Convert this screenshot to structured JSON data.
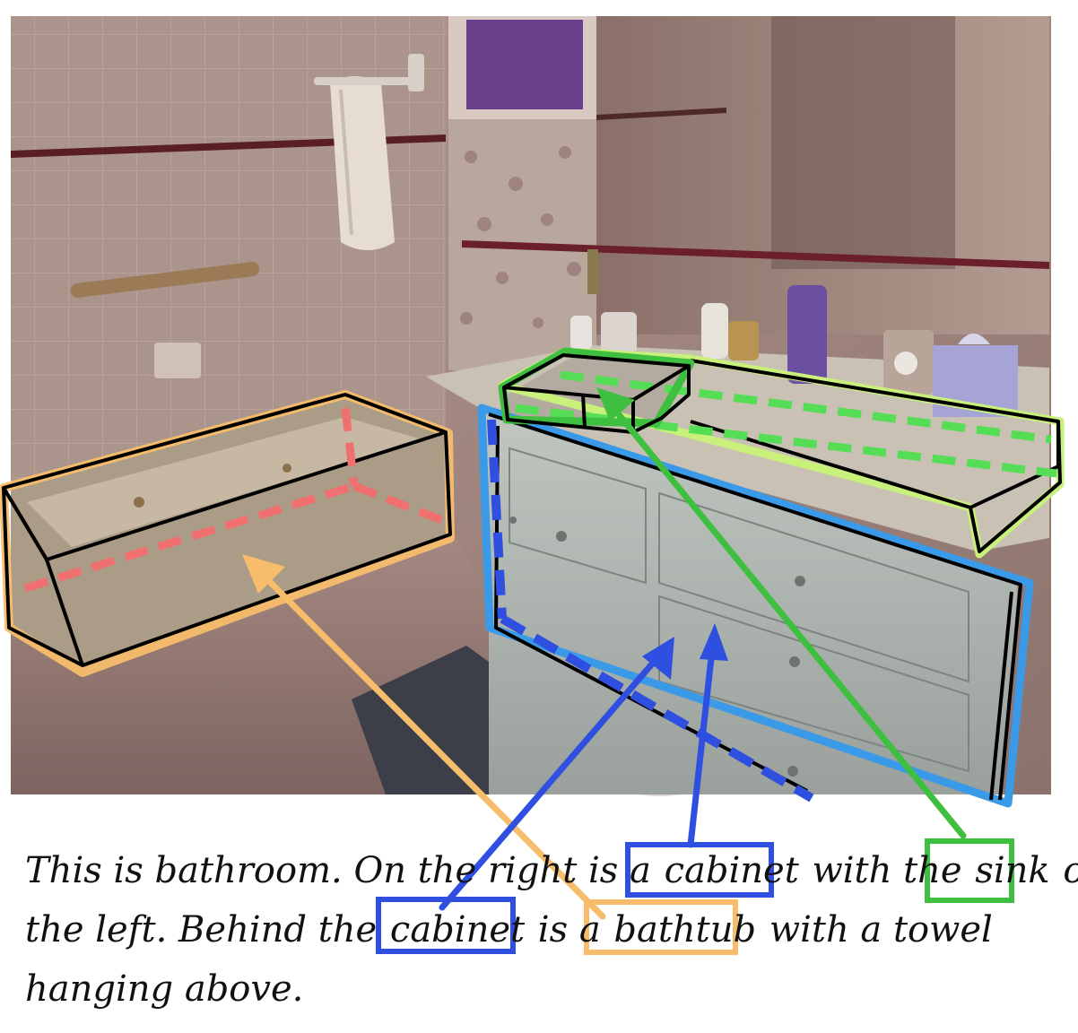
{
  "scene": {
    "objects": [
      {
        "label": "bathtub",
        "color": "#f7bd6b"
      },
      {
        "label": "cabinet",
        "color": "#2f4fe0"
      },
      {
        "label": "sink",
        "color": "#3fbf3f"
      }
    ],
    "colors": {
      "bathtub": "#f7bd6b",
      "bathtub_floor_guide": "#f07070",
      "cabinet": "#2f4fe0",
      "cabinet_outline": "#3a9ae8",
      "sink": "#3fbf3f",
      "counter_outline": "#c9f07a",
      "counter_guide": "#55dd55",
      "box_edge": "#000000"
    }
  },
  "caption": {
    "line1": [
      "This is bathroom. On the right is a ",
      "cabinet",
      " with the ",
      "sink",
      " on"
    ],
    "line2": [
      "the left. Behind the ",
      "cabinet",
      " is a ",
      "bathtub",
      " with a towel"
    ],
    "line3": [
      "hanging above."
    ]
  }
}
